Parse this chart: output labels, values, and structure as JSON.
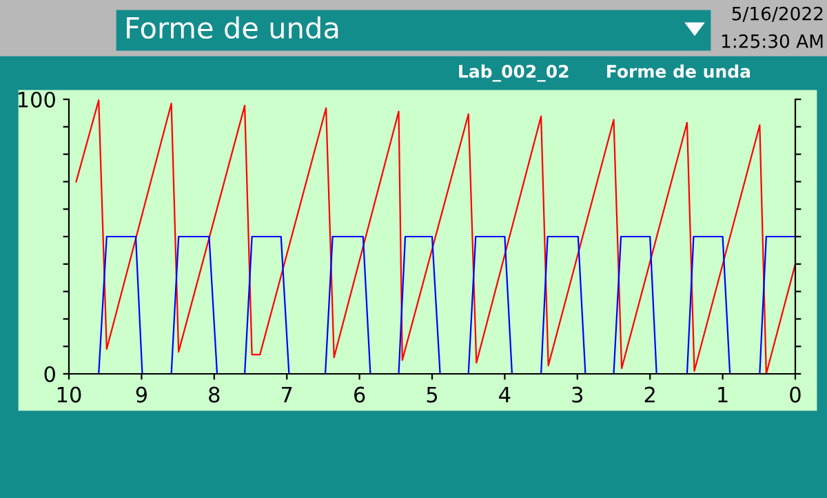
{
  "chart_data": {
    "type": "line",
    "title": "Forme de unda",
    "subtitle": "Lab_002_02      Forme de unda",
    "annotations": [
      "5/16/2022",
      "1:25:30 AM"
    ],
    "series": [
      {
        "color": "#ff0000",
        "x": [
          9.9,
          9.59,
          9.48,
          8.59,
          8.49,
          7.58,
          7.48,
          7.37,
          6.46,
          6.35,
          5.46,
          5.41,
          4.5,
          4.39,
          3.5,
          3.4,
          2.5,
          2.39,
          1.49,
          1.39,
          0.49,
          0.4,
          0
        ],
        "values": [
          70,
          99.7,
          9,
          98.5,
          8,
          97.7,
          7,
          7,
          96.8,
          6,
          95.6,
          5,
          94.6,
          4,
          93.8,
          3,
          92.6,
          2,
          91.5,
          1,
          90.6,
          0,
          40
        ]
      },
      {
        "color": "#0000ff",
        "x": [
          9.9,
          9.59,
          9.48,
          9.08,
          8.99,
          8.59,
          8.49,
          8.07,
          7.96,
          7.58,
          7.48,
          7.08,
          6.97,
          6.47,
          6.37,
          5.95,
          5.85,
          5.46,
          5.37,
          5.0,
          4.89,
          4.5,
          4.4,
          4.0,
          3.9,
          3.5,
          3.41,
          2.99,
          2.89,
          2.5,
          2.4,
          2.0,
          1.91,
          1.49,
          1.4,
          1.0,
          0.9,
          0.49,
          0.4,
          0
        ],
        "values": [
          0,
          0,
          50,
          50,
          0,
          0,
          50,
          50,
          0,
          0,
          50,
          50,
          0,
          0,
          50,
          50,
          0,
          0,
          50,
          50,
          0,
          0,
          50,
          50,
          0,
          0,
          50,
          50,
          0,
          0,
          50,
          50,
          0,
          0,
          50,
          50,
          0,
          0,
          50,
          50
        ]
      }
    ],
    "xlim": [
      10,
      0
    ],
    "xticks": [
      10,
      9,
      8,
      7,
      6,
      5,
      4,
      3,
      2,
      1,
      0
    ],
    "ylim": [
      0,
      100
    ],
    "yticks": [
      0,
      {
        "value": 10,
        "label": null
      },
      {
        "value": 20,
        "label": null
      },
      {
        "value": 30,
        "label": null
      },
      {
        "value": 40,
        "label": null
      },
      {
        "value": 50,
        "label": null
      },
      {
        "value": 60,
        "label": null
      },
      {
        "value": 70,
        "label": null
      },
      {
        "value": 80,
        "label": null
      },
      {
        "value": 90,
        "label": null
      },
      100
    ],
    "grid": false,
    "legend": false,
    "marker": "none",
    "line_style": "solid"
  }
}
